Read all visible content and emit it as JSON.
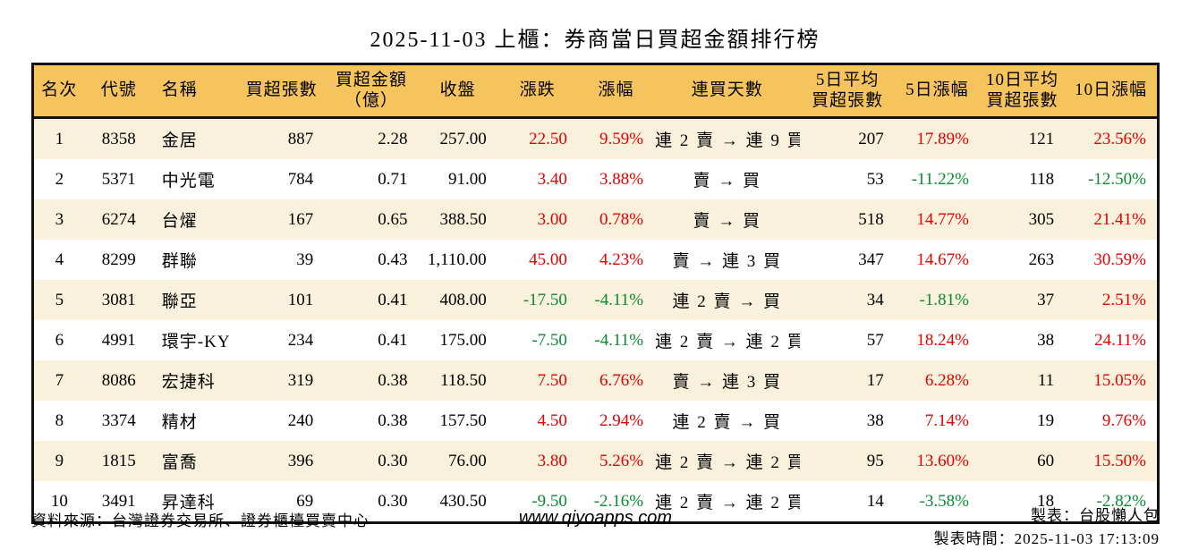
{
  "title": "2025-11-03 上櫃：券商當日買超金額排行榜",
  "colors": {
    "header_bg": "#F6C45C",
    "row_alt_bg": "#FAF1DC",
    "row_bg": "#FFFFFF",
    "up_red": "#E60000",
    "down_green": "#0A8A32",
    "border": "#111111"
  },
  "table": {
    "headers": [
      {
        "label": "名次"
      },
      {
        "label": "代號"
      },
      {
        "label": "名稱"
      },
      {
        "label": "買超張數"
      },
      {
        "label": "買超金額\n（億）"
      },
      {
        "label": "收盤"
      },
      {
        "label": "漲跌"
      },
      {
        "label": "漲幅"
      },
      {
        "label": "連買天數"
      },
      {
        "label": "5日平均\n買超張數"
      },
      {
        "label": "5日漲幅"
      },
      {
        "label": "10日平均\n買超張數"
      },
      {
        "label": "10日漲幅"
      }
    ],
    "rows": [
      {
        "rank": "1",
        "code": "8358",
        "name": "金居",
        "net_buy_volume": "887",
        "net_buy_amount": "2.28",
        "close": "257.00",
        "change": "22.50",
        "change_pct": "9.59%",
        "streak": "連 2 賣 → 連 9 買",
        "avg5_volume": "207",
        "pct5": "17.89%",
        "avg10_volume": "121",
        "pct10": "23.56%"
      },
      {
        "rank": "2",
        "code": "5371",
        "name": "中光電",
        "net_buy_volume": "784",
        "net_buy_amount": "0.71",
        "close": "91.00",
        "change": "3.40",
        "change_pct": "3.88%",
        "streak": "賣 → 買",
        "avg5_volume": "53",
        "pct5": "-11.22%",
        "avg10_volume": "118",
        "pct10": "-12.50%"
      },
      {
        "rank": "3",
        "code": "6274",
        "name": "台燿",
        "net_buy_volume": "167",
        "net_buy_amount": "0.65",
        "close": "388.50",
        "change": "3.00",
        "change_pct": "0.78%",
        "streak": "賣 → 買",
        "avg5_volume": "518",
        "pct5": "14.77%",
        "avg10_volume": "305",
        "pct10": "21.41%"
      },
      {
        "rank": "4",
        "code": "8299",
        "name": "群聯",
        "net_buy_volume": "39",
        "net_buy_amount": "0.43",
        "close": "1,110.00",
        "change": "45.00",
        "change_pct": "4.23%",
        "streak": "賣 → 連 3 買",
        "avg5_volume": "347",
        "pct5": "14.67%",
        "avg10_volume": "263",
        "pct10": "30.59%"
      },
      {
        "rank": "5",
        "code": "3081",
        "name": "聯亞",
        "net_buy_volume": "101",
        "net_buy_amount": "0.41",
        "close": "408.00",
        "change": "-17.50",
        "change_pct": "-4.11%",
        "streak": "連 2 賣 → 買",
        "avg5_volume": "34",
        "pct5": "-1.81%",
        "avg10_volume": "37",
        "pct10": "2.51%"
      },
      {
        "rank": "6",
        "code": "4991",
        "name": "環宇-KY",
        "net_buy_volume": "234",
        "net_buy_amount": "0.41",
        "close": "175.00",
        "change": "-7.50",
        "change_pct": "-4.11%",
        "streak": "連 2 賣 → 連 2 買",
        "avg5_volume": "57",
        "pct5": "18.24%",
        "avg10_volume": "38",
        "pct10": "24.11%"
      },
      {
        "rank": "7",
        "code": "8086",
        "name": "宏捷科",
        "net_buy_volume": "319",
        "net_buy_amount": "0.38",
        "close": "118.50",
        "change": "7.50",
        "change_pct": "6.76%",
        "streak": "賣 → 連 3 買",
        "avg5_volume": "17",
        "pct5": "6.28%",
        "avg10_volume": "11",
        "pct10": "15.05%"
      },
      {
        "rank": "8",
        "code": "3374",
        "name": "精材",
        "net_buy_volume": "240",
        "net_buy_amount": "0.38",
        "close": "157.50",
        "change": "4.50",
        "change_pct": "2.94%",
        "streak": "連 2 賣 → 買",
        "avg5_volume": "38",
        "pct5": "7.14%",
        "avg10_volume": "19",
        "pct10": "9.76%"
      },
      {
        "rank": "9",
        "code": "1815",
        "name": "富喬",
        "net_buy_volume": "396",
        "net_buy_amount": "0.30",
        "close": "76.00",
        "change": "3.80",
        "change_pct": "5.26%",
        "streak": "連 2 賣 → 連 2 買",
        "avg5_volume": "95",
        "pct5": "13.60%",
        "avg10_volume": "60",
        "pct10": "15.50%"
      },
      {
        "rank": "10",
        "code": "3491",
        "name": "昇達科",
        "net_buy_volume": "69",
        "net_buy_amount": "0.30",
        "close": "430.50",
        "change": "-9.50",
        "change_pct": "-2.16%",
        "streak": "連 2 賣 → 連 2 買",
        "avg5_volume": "14",
        "pct5": "-3.58%",
        "avg10_volume": "18",
        "pct10": "-2.82%"
      }
    ]
  },
  "footer": {
    "source": "資料來源：台灣證券交易所、證券櫃檯買賣中心",
    "website": "www.qiyoapps.com",
    "author": "製表：台股懶人包",
    "generated": "製表時間：2025-11-03 17:13:09"
  }
}
